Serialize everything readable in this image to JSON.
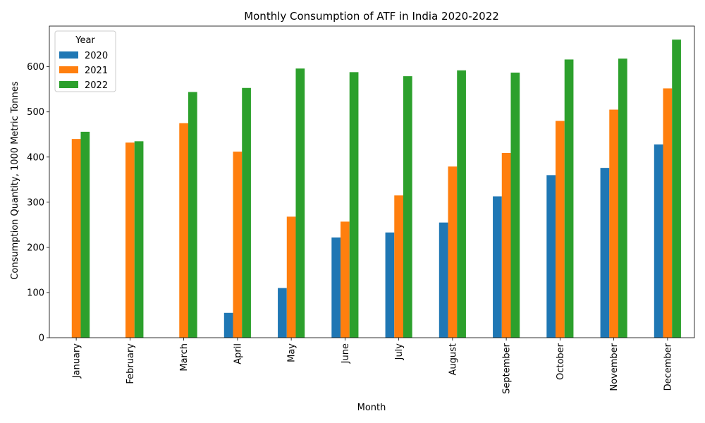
{
  "chart_data": {
    "type": "bar",
    "title": "Monthly Consumption of ATF in India 2020-2022",
    "xlabel": "Month",
    "ylabel": "Consumption Quantity, 1000 Metric Tonnes",
    "ylim": [
      0,
      690
    ],
    "yticks": [
      0,
      100,
      200,
      300,
      400,
      500,
      600
    ],
    "grid": false,
    "legend": {
      "title": "Year",
      "placement": "top-left"
    },
    "categories": [
      "January",
      "February",
      "March",
      "April",
      "May",
      "June",
      "July",
      "August",
      "September",
      "October",
      "November",
      "December"
    ],
    "series": [
      {
        "name": "2020",
        "color": "#1f77b4",
        "values": [
          null,
          null,
          null,
          55,
          110,
          222,
          233,
          255,
          313,
          360,
          376,
          428
        ]
      },
      {
        "name": "2021",
        "color": "#ff7f0e",
        "values": [
          440,
          432,
          475,
          412,
          268,
          257,
          315,
          379,
          409,
          480,
          505,
          552
        ]
      },
      {
        "name": "2022",
        "color": "#2ca02c",
        "values": [
          456,
          435,
          544,
          553,
          596,
          588,
          579,
          592,
          587,
          616,
          618,
          660
        ]
      }
    ]
  }
}
